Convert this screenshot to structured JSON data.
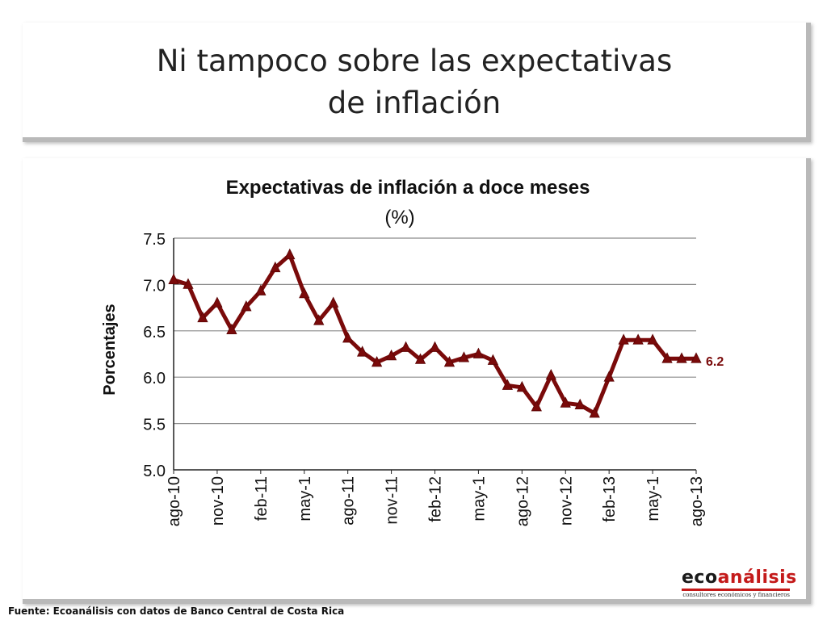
{
  "slide": {
    "title_line1": "Ni tampoco sobre las expectativas",
    "title_line2": "de inflación"
  },
  "source": "Fuente: Ecoanálisis con datos de Banco  Central de Costa Rica",
  "logo": {
    "word_eco": "eco",
    "word_analisis": "análisis",
    "tagline": "consultores económicos y financieros"
  },
  "colors": {
    "series": "#7a0a0a",
    "grid": "#8a8a8a",
    "accent": "#c41a1a"
  },
  "chart_data": {
    "type": "line",
    "title_line1": "Expectativas de inflación a doce meses",
    "title_line2": "(%)",
    "ylabel": "Porcentajes",
    "ylim": [
      5.0,
      7.5
    ],
    "yticks": [
      "7.5",
      "7.0",
      "6.5",
      "6.0",
      "5.5",
      "5.0"
    ],
    "grid": true,
    "tick_labels": [
      "ago-10",
      "nov-10",
      "feb-11",
      "may-1",
      "ago-11",
      "nov-11",
      "feb-12",
      "may-1",
      "ago-12",
      "nov-12",
      "feb-13",
      "may-1",
      "ago-13"
    ],
    "end_label": "6.2",
    "series": [
      {
        "values": [
          7.05,
          7.0,
          6.64,
          6.8,
          6.51,
          6.76,
          6.93,
          7.18,
          7.32,
          6.9,
          6.61,
          6.8,
          6.42,
          6.27,
          6.16,
          6.23,
          6.32,
          6.19,
          6.32,
          6.16,
          6.21,
          6.25,
          6.18,
          5.91,
          5.89,
          5.68,
          6.02,
          5.72,
          5.7,
          5.61,
          6.0,
          6.4,
          6.4,
          6.4,
          6.2,
          6.2,
          6.2
        ]
      }
    ]
  }
}
